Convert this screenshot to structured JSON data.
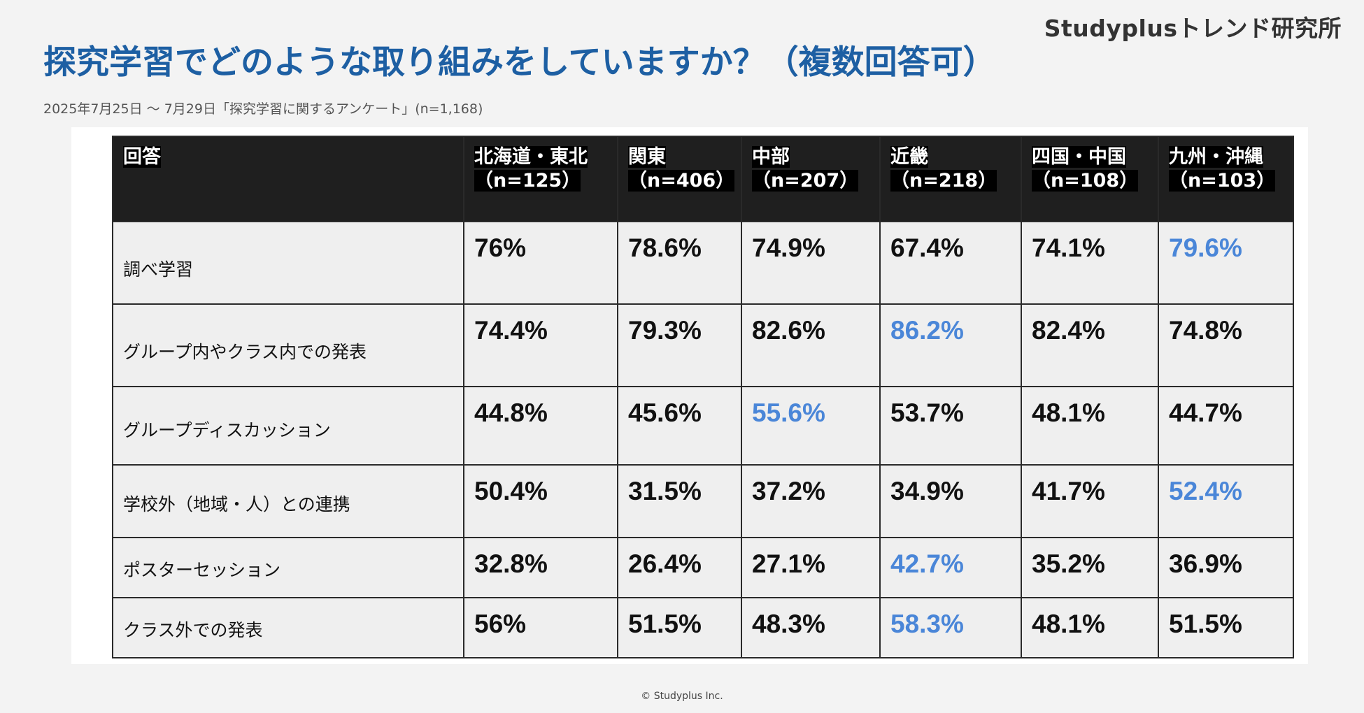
{
  "brand": "Studyplusトレンド研究所",
  "title": "探究学習でどのような取り組みをしていますか？（複数回答可）",
  "subtitle": "2025年7月25日 〜 7月29日「探究学習に関するアンケート」(n=1,168)",
  "footer": "© Studyplus Inc.",
  "colors": {
    "title": "#1d5fa3",
    "highlight": "#4a86d8",
    "header_bg": "#1f1f1f"
  },
  "chart_data": {
    "type": "table",
    "row_header": "回答",
    "columns": [
      {
        "name": "北海道・東北",
        "n": "（n=125）"
      },
      {
        "name": "関東",
        "n": "（n=406）"
      },
      {
        "name": "中部",
        "n": "（n=207）"
      },
      {
        "name": "近畿",
        "n": "（n=218）"
      },
      {
        "name": "四国・中国",
        "n": "（n=108）"
      },
      {
        "name": "九州・沖縄",
        "n": "（n=103）"
      }
    ],
    "rows": [
      {
        "label": "調べ学習",
        "values": [
          "76%",
          "78.6%",
          "74.9%",
          "67.4%",
          "74.1%",
          "79.6%"
        ],
        "highlight_index": 5
      },
      {
        "label": "グループ内やクラス内での発表",
        "values": [
          "74.4%",
          "79.3%",
          "82.6%",
          "86.2%",
          "82.4%",
          "74.8%"
        ],
        "highlight_index": 3
      },
      {
        "label": "グループディスカッション",
        "values": [
          "44.8%",
          "45.6%",
          "55.6%",
          "53.7%",
          "48.1%",
          "44.7%"
        ],
        "highlight_index": 2
      },
      {
        "label": "学校外（地域・人）との連携",
        "values": [
          "50.4%",
          "31.5%",
          "37.2%",
          "34.9%",
          "41.7%",
          "52.4%"
        ],
        "highlight_index": 5
      },
      {
        "label": "ポスターセッション",
        "values": [
          "32.8%",
          "26.4%",
          "27.1%",
          "42.7%",
          "35.2%",
          "36.9%"
        ],
        "highlight_index": 3
      },
      {
        "label": "クラス外での発表",
        "values": [
          "56%",
          "51.5%",
          "48.3%",
          "58.3%",
          "48.1%",
          "51.5%"
        ],
        "highlight_index": 3
      }
    ]
  }
}
